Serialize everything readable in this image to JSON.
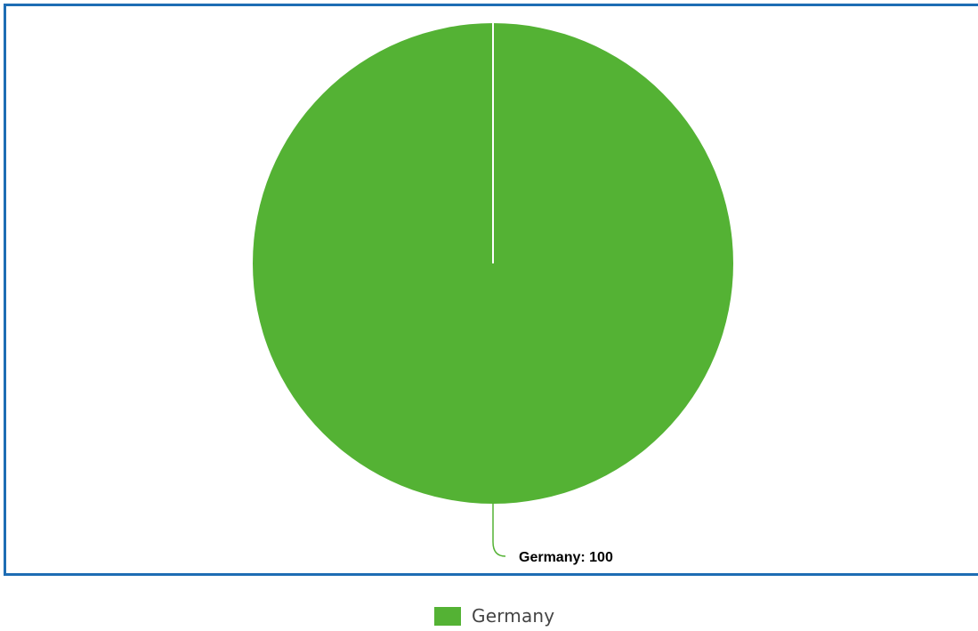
{
  "chart_data": {
    "type": "pie",
    "title": "",
    "slices": [
      {
        "label": "Germany",
        "value": 100,
        "color": "#54b234"
      }
    ],
    "data_label_format": "{label}: {value}",
    "legend": {
      "placement": "bottom-center",
      "entries": [
        "Germany"
      ]
    }
  },
  "colors": {
    "frame_border": "#1e6db4",
    "slice_separator": "#ffffff",
    "label_text": "#000000",
    "legend_text": "#444444"
  }
}
